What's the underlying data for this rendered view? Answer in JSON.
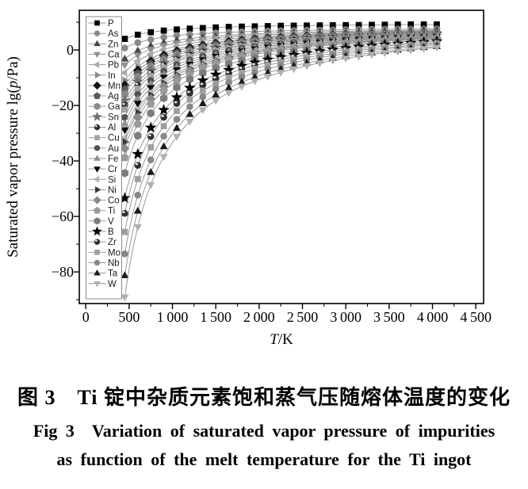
{
  "figure": {
    "caption_zh": "图 3　Ti 锭中杂质元素饱和蒸气压随熔体温度的变化",
    "caption_en_line1": "Fig 3  Variation of saturated vapor pressure of impurities",
    "caption_en_line2": "as function of the melt temperature for the Ti ingot"
  },
  "chart_data": {
    "type": "line",
    "title": "",
    "xlabel": {
      "italic": "T",
      "rest": "/K"
    },
    "ylabel": {
      "pre": "Saturated vapor pressure lg(",
      "italic": "p",
      "post": "/Pa)"
    },
    "xlim": [
      -75,
      4590
    ],
    "ylim": [
      -91.4,
      14.3
    ],
    "x_tick_values": [
      0,
      500,
      1000,
      1500,
      2000,
      2500,
      3000,
      3500,
      4000,
      4500
    ],
    "x_tick_labels": [
      "0",
      "500",
      "1 000",
      "1 500",
      "2 000",
      "2 500",
      "3 000",
      "3 500",
      "4 000",
      "4 500"
    ],
    "x_minor_tick_values": [
      250,
      750,
      1250,
      1750,
      2250,
      2750,
      3250,
      3750,
      4250
    ],
    "y_tick_values": [
      0,
      -20,
      -40,
      -60,
      -80
    ],
    "y_tick_labels": [
      "0",
      "−20",
      "−40",
      "−60",
      "−80"
    ],
    "y_minor_tick_values": [
      10,
      -10,
      -30,
      -50,
      -70,
      -90
    ],
    "grid": "off",
    "legend_position": "inside-left",
    "line_color": "#8f8f8f",
    "T": [
      450,
      750,
      1050,
      1350,
      1650,
      1950,
      2250,
      2550,
      2850,
      3150,
      3450,
      3750,
      4050
    ],
    "marker_T_step": 150,
    "series": [
      {
        "name": "P",
        "marker": "square",
        "color": "#000000",
        "values": [
          4.0,
          6.4,
          7.4,
          7.9,
          8.3,
          8.5,
          8.7,
          8.8,
          8.9,
          9.0,
          9.1,
          9.2,
          9.2
        ]
      },
      {
        "name": "As",
        "marker": "circle",
        "color": "#8a8a8a",
        "values": [
          0.7,
          3.8,
          5.2,
          5.9,
          6.4,
          6.7,
          6.9,
          7.1,
          7.2,
          7.4,
          7.5,
          7.5,
          7.6
        ]
      },
      {
        "name": "Zn",
        "marker": "triangle-up",
        "color": "#474747",
        "values": [
          -3.2,
          1.5,
          3.5,
          4.6,
          5.3,
          5.8,
          6.2,
          6.4,
          6.7,
          6.8,
          7.0,
          7.1,
          7.2
        ]
      },
      {
        "name": "Ca",
        "marker": "triangle-down",
        "color": "#8f8f8f",
        "values": [
          -5.4,
          0.2,
          2.5,
          3.8,
          4.7,
          5.3,
          5.7,
          6.0,
          6.3,
          6.5,
          6.7,
          6.8,
          6.9
        ]
      },
      {
        "name": "Pb",
        "marker": "triangle-left",
        "color": "#ababab",
        "values": [
          -8.2,
          -1.5,
          1.4,
          3.0,
          4.0,
          4.7,
          5.2,
          5.6,
          5.9,
          6.2,
          6.4,
          6.6,
          6.7
        ]
      },
      {
        "name": "In",
        "marker": "triangle-right",
        "color": "#8a8a8a",
        "values": [
          -11.0,
          -3.1,
          0.3,
          2.2,
          3.4,
          4.2,
          4.8,
          5.3,
          5.7,
          6.0,
          6.2,
          6.4,
          6.6
        ]
      },
      {
        "name": "Mn",
        "marker": "diamond",
        "color": "#141414",
        "values": [
          -12.7,
          -4.1,
          -0.4,
          1.7,
          3.0,
          3.9,
          4.5,
          5.0,
          5.4,
          5.7,
          6.0,
          6.2,
          6.4
        ]
      },
      {
        "name": "Ag",
        "marker": "pentagon",
        "color": "#5a5a5a",
        "values": [
          -14.3,
          -5.1,
          -1.1,
          1.1,
          2.5,
          3.5,
          4.2,
          4.7,
          5.2,
          5.5,
          5.8,
          6.0,
          6.2
        ]
      },
      {
        "name": "Ga",
        "marker": "hexagon",
        "color": "#8a8a8a",
        "values": [
          -16.0,
          -6.1,
          -1.8,
          0.5,
          2.0,
          3.1,
          3.8,
          4.4,
          4.9,
          5.3,
          5.6,
          5.8,
          6.0
        ]
      },
      {
        "name": "Sn",
        "marker": "star",
        "color": "#6e6e6e",
        "values": [
          -18.2,
          -7.4,
          -2.8,
          -0.2,
          1.5,
          2.6,
          3.4,
          4.1,
          4.6,
          5.0,
          5.3,
          5.6,
          5.8
        ]
      },
      {
        "name": "Al",
        "marker": "sphere",
        "color": "#2b2b2b",
        "values": [
          -19.9,
          -8.4,
          -3.5,
          -0.7,
          1.0,
          2.2,
          3.1,
          3.8,
          4.3,
          4.7,
          5.1,
          5.4,
          5.6
        ]
      },
      {
        "name": "Cu",
        "marker": "square",
        "color": "#a3a3a3",
        "values": [
          -21.5,
          -9.4,
          -4.2,
          -1.3,
          0.5,
          1.8,
          2.7,
          3.5,
          4.0,
          4.5,
          4.9,
          5.2,
          5.4
        ]
      },
      {
        "name": "Au",
        "marker": "circle",
        "color": "#4f4f4f",
        "values": [
          -24.3,
          -11.0,
          -5.3,
          -2.2,
          -0.1,
          1.3,
          2.3,
          3.1,
          3.7,
          4.2,
          4.6,
          4.9,
          5.2
        ]
      },
      {
        "name": "Fe",
        "marker": "triangle-up",
        "color": "#8f8f8f",
        "values": [
          -26.6,
          -12.3,
          -6.2,
          -2.9,
          -0.7,
          0.8,
          1.9,
          2.7,
          3.4,
          3.9,
          4.4,
          4.7,
          5.0
        ]
      },
      {
        "name": "Cr",
        "marker": "triangle-down",
        "color": "#0a0a0a",
        "values": [
          -28.8,
          -13.6,
          -7.2,
          -3.6,
          -1.3,
          0.3,
          1.5,
          2.4,
          3.1,
          3.7,
          4.1,
          4.5,
          4.9
        ]
      },
      {
        "name": "Si",
        "marker": "triangle-left",
        "color": "#b5b5b5",
        "values": [
          -31.6,
          -15.3,
          -8.3,
          -4.4,
          -1.9,
          -0.2,
          1.0,
          2.0,
          2.8,
          3.4,
          3.9,
          4.3,
          4.7
        ]
      },
      {
        "name": "Ni",
        "marker": "triangle-right",
        "color": "#383838",
        "values": [
          -33.2,
          -16.3,
          -9.0,
          -5.0,
          -2.4,
          -0.6,
          0.7,
          1.7,
          2.5,
          3.1,
          3.6,
          4.1,
          4.5
        ]
      },
      {
        "name": "Co",
        "marker": "diamond",
        "color": "#8a8a8a",
        "values": [
          -35.5,
          -17.6,
          -9.9,
          -5.7,
          -3.0,
          -1.1,
          0.3,
          1.3,
          2.2,
          2.8,
          3.4,
          3.9,
          4.3
        ]
      },
      {
        "name": "Ti",
        "marker": "pentagon",
        "color": "#9a9a9a",
        "values": [
          -38.8,
          -19.5,
          -11.3,
          -6.7,
          -3.7,
          -1.7,
          -0.2,
          0.9,
          1.8,
          2.5,
          3.1,
          3.6,
          4.1
        ]
      },
      {
        "name": "V",
        "marker": "hexagon",
        "color": "#7d7d7d",
        "values": [
          -44.4,
          -22.8,
          -13.5,
          -8.3,
          -5.1,
          -2.8,
          -1.1,
          0.1,
          1.1,
          2.0,
          2.6,
          3.2,
          3.7
        ]
      },
      {
        "name": "B",
        "marker": "star",
        "color": "#000000",
        "values": [
          -53.4,
          -28.0,
          -17.1,
          -11.0,
          -7.2,
          -4.5,
          -2.6,
          -1.1,
          0.1,
          1.1,
          1.9,
          2.5,
          3.1
        ]
      },
      {
        "name": "Zr",
        "marker": "sphere",
        "color": "#303030",
        "values": [
          -58.9,
          -31.2,
          -19.3,
          -12.7,
          -8.5,
          -5.6,
          -3.5,
          -1.8,
          -0.5,
          0.5,
          1.4,
          2.1,
          2.7
        ]
      },
      {
        "name": "Mo",
        "marker": "square",
        "color": "#9e9e9e",
        "values": [
          -65.6,
          -35.1,
          -22.0,
          -14.7,
          -10.0,
          -6.8,
          -4.5,
          -2.7,
          -1.3,
          -0.1,
          0.8,
          1.6,
          2.3
        ]
      },
      {
        "name": "Nb",
        "marker": "circle",
        "color": "#878787",
        "values": [
          -73.5,
          -39.6,
          -25.0,
          -16.9,
          -11.8,
          -8.2,
          -5.6,
          -3.6,
          -2.0,
          -0.8,
          0.3,
          1.2,
          1.9
        ]
      },
      {
        "name": "Ta",
        "marker": "triangle-up",
        "color": "#1c1c1c",
        "values": [
          -81.3,
          -44.1,
          -28.2,
          -19.3,
          -13.7,
          -9.8,
          -6.9,
          -4.7,
          -3.0,
          -1.6,
          -0.5,
          0.5,
          1.3
        ]
      },
      {
        "name": "W",
        "marker": "triangle-down",
        "color": "#b0b0b0",
        "values": [
          -89.1,
          -48.6,
          -31.2,
          -21.6,
          -15.4,
          -11.2,
          -8.1,
          -5.7,
          -3.8,
          -2.3,
          -1.0,
          0.0,
          0.9
        ]
      }
    ]
  }
}
